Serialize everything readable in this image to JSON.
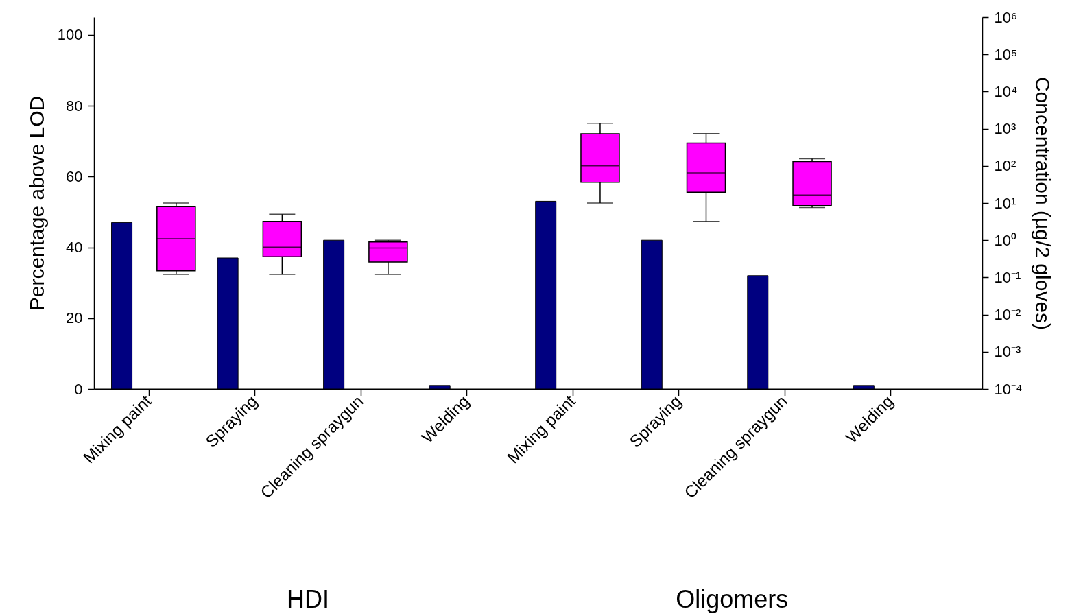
{
  "chart_data": {
    "type": "bar",
    "ylabel": "Percentage above LOD",
    "y2label": "Concentration (µg/2 gloves)",
    "annotations": [
      "HDI",
      "Oligomers"
    ],
    "categories": [
      "Mixing paint",
      "Spraying",
      "Cleaning spraygun",
      "Welding",
      "Mixing paint",
      "Spraying",
      "Cleaning spraygun",
      "Welding"
    ],
    "ylim": [
      0,
      105
    ],
    "yticks": [
      0,
      20,
      40,
      60,
      80,
      100
    ],
    "y2lim": [
      0.0001,
      1000000
    ],
    "log": "y2",
    "y2ticks": [
      {
        "value": 1000000,
        "label": "10⁶"
      },
      {
        "value": 100000,
        "label": "10⁵"
      },
      {
        "value": 10000,
        "label": "10⁴"
      },
      {
        "value": 1000,
        "label": "10³"
      },
      {
        "value": 100,
        "label": "10²"
      },
      {
        "value": 10,
        "label": "10¹"
      },
      {
        "value": 1,
        "label": "10⁰"
      },
      {
        "value": 0.1,
        "label": "10⁻¹"
      },
      {
        "value": 0.01,
        "label": "10⁻²"
      },
      {
        "value": 0.001,
        "label": "10⁻³"
      },
      {
        "value": 0.0001,
        "label": "10⁻⁴"
      }
    ],
    "series": [
      {
        "color": "#000080",
        "values": [
          47,
          37,
          42,
          1,
          53,
          42,
          32,
          1
        ]
      },
      {
        "type": "box",
        "axis": "y2",
        "color": "#ff00ff",
        "boxes": [
          {
            "low": 0.12,
            "q1": 0.15,
            "median": 1.1,
            "q3": 8,
            "high": 10
          },
          {
            "low": 0.12,
            "q1": 0.36,
            "median": 0.65,
            "q3": 3.2,
            "high": 5
          },
          {
            "low": 0.12,
            "q1": 0.26,
            "median": 0.62,
            "q3": 0.9,
            "high": 1
          },
          null,
          {
            "low": 10,
            "q1": 36,
            "median": 100,
            "q3": 730,
            "high": 1400
          },
          {
            "low": 3.2,
            "q1": 19.5,
            "median": 65,
            "q3": 410,
            "high": 740
          },
          {
            "low": 7.6,
            "q1": 8.5,
            "median": 16.5,
            "q3": 130,
            "high": 155
          },
          null
        ]
      }
    ]
  }
}
